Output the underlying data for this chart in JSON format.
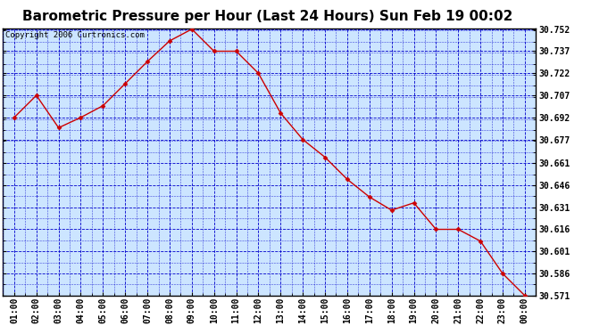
{
  "title": "Barometric Pressure per Hour (Last 24 Hours) Sun Feb 19 00:02",
  "copyright": "Copyright 2006 Curtronics.com",
  "x_labels": [
    "01:00",
    "02:00",
    "03:00",
    "04:00",
    "05:00",
    "06:00",
    "07:00",
    "08:00",
    "09:00",
    "10:00",
    "11:00",
    "12:00",
    "13:00",
    "14:00",
    "15:00",
    "16:00",
    "17:00",
    "18:00",
    "19:00",
    "20:00",
    "21:00",
    "22:00",
    "23:00",
    "00:00"
  ],
  "y_values": [
    30.692,
    30.707,
    30.685,
    30.692,
    30.7,
    30.715,
    30.73,
    30.744,
    30.752,
    30.737,
    30.737,
    30.722,
    30.695,
    30.677,
    30.665,
    30.65,
    30.638,
    30.629,
    30.634,
    30.616,
    30.616,
    30.608,
    30.586,
    30.571
  ],
  "ylim_min": 30.571,
  "ylim_max": 30.7525,
  "yticks": [
    30.752,
    30.737,
    30.722,
    30.707,
    30.692,
    30.677,
    30.661,
    30.646,
    30.631,
    30.616,
    30.601,
    30.586,
    30.571
  ],
  "line_color": "#cc0000",
  "marker": "D",
  "marker_size": 2.5,
  "bg_color": "#cce5ff",
  "grid_color": "#0000cc",
  "title_fontsize": 11,
  "copyright_fontsize": 6.5,
  "tick_fontsize": 7,
  "border_color": "#000000"
}
